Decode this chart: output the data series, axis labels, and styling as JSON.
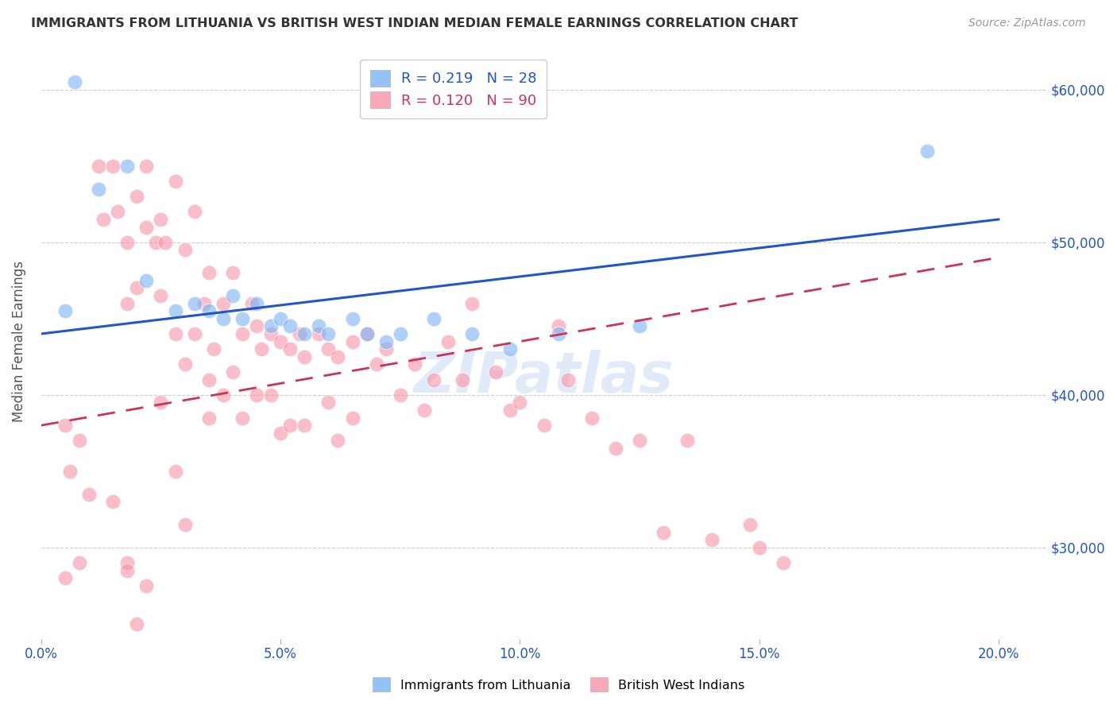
{
  "title": "IMMIGRANTS FROM LITHUANIA VS BRITISH WEST INDIAN MEDIAN FEMALE EARNINGS CORRELATION CHART",
  "source": "Source: ZipAtlas.com",
  "xlabel_ticks": [
    "0.0%",
    "5.0%",
    "10.0%",
    "15.0%",
    "20.0%"
  ],
  "xlabel_tick_vals": [
    0.0,
    0.05,
    0.1,
    0.15,
    0.2
  ],
  "ylabel": "Median Female Earnings",
  "xlim": [
    0.0,
    0.21
  ],
  "ylim": [
    24000,
    63000
  ],
  "watermark": "ZIPatlas",
  "blue_color": "#7ab3f5",
  "pink_color": "#f892a8",
  "blue_line_color": "#2255cc",
  "pink_line_color": "#cc3355",
  "axis_label_color": "#2255cc",
  "title_color": "#333333",
  "grid_color": "#cccccc",
  "blue_line_x0": 0.0,
  "blue_line_x1": 0.2,
  "blue_line_y0": 44000,
  "blue_line_y1": 51500,
  "pink_line_x0": 0.0,
  "pink_line_x1": 0.2,
  "pink_line_y0": 38000,
  "pink_line_y1": 49000,
  "blue_scatter_x": [
    0.007,
    0.012,
    0.018,
    0.022,
    0.028,
    0.032,
    0.035,
    0.038,
    0.04,
    0.042,
    0.045,
    0.048,
    0.05,
    0.052,
    0.055,
    0.058,
    0.06,
    0.065,
    0.068,
    0.072,
    0.075,
    0.082,
    0.09,
    0.098,
    0.108,
    0.125,
    0.185,
    0.005
  ],
  "blue_scatter_y": [
    60500,
    53500,
    55000,
    47500,
    45500,
    46000,
    45500,
    45000,
    46500,
    45000,
    46000,
    44500,
    45000,
    44500,
    44000,
    44500,
    44000,
    45000,
    44000,
    43500,
    44000,
    45000,
    44000,
    43000,
    44000,
    44500,
    56000,
    45500
  ],
  "pink_scatter_x": [
    0.005,
    0.006,
    0.008,
    0.01,
    0.012,
    0.013,
    0.015,
    0.016,
    0.018,
    0.018,
    0.02,
    0.02,
    0.022,
    0.022,
    0.024,
    0.025,
    0.025,
    0.026,
    0.028,
    0.028,
    0.03,
    0.03,
    0.032,
    0.032,
    0.034,
    0.035,
    0.035,
    0.036,
    0.038,
    0.038,
    0.04,
    0.04,
    0.042,
    0.042,
    0.044,
    0.045,
    0.045,
    0.046,
    0.048,
    0.048,
    0.05,
    0.05,
    0.052,
    0.052,
    0.054,
    0.055,
    0.055,
    0.058,
    0.06,
    0.06,
    0.062,
    0.062,
    0.065,
    0.065,
    0.068,
    0.07,
    0.072,
    0.075,
    0.078,
    0.08,
    0.082,
    0.085,
    0.088,
    0.09,
    0.095,
    0.098,
    0.1,
    0.105,
    0.108,
    0.11,
    0.115,
    0.12,
    0.125,
    0.13,
    0.135,
    0.14,
    0.148,
    0.15,
    0.155,
    0.005,
    0.008,
    0.015,
    0.018,
    0.022,
    0.025,
    0.028,
    0.03,
    0.035,
    0.018,
    0.02
  ],
  "pink_scatter_y": [
    28000,
    35000,
    37000,
    33500,
    55000,
    51500,
    55000,
    52000,
    50000,
    46000,
    53000,
    47000,
    55000,
    51000,
    50000,
    51500,
    46500,
    50000,
    54000,
    44000,
    49500,
    42000,
    52000,
    44000,
    46000,
    48000,
    41000,
    43000,
    46000,
    40000,
    48000,
    41500,
    44000,
    38500,
    46000,
    44500,
    40000,
    43000,
    44000,
    40000,
    43500,
    37500,
    43000,
    38000,
    44000,
    42500,
    38000,
    44000,
    43000,
    39500,
    42500,
    37000,
    43500,
    38500,
    44000,
    42000,
    43000,
    40000,
    42000,
    39000,
    41000,
    43500,
    41000,
    46000,
    41500,
    39000,
    39500,
    38000,
    44500,
    41000,
    38500,
    36500,
    37000,
    31000,
    37000,
    30500,
    31500,
    30000,
    29000,
    38000,
    29000,
    33000,
    29000,
    27500,
    39500,
    35000,
    31500,
    38500,
    28500,
    25000
  ]
}
